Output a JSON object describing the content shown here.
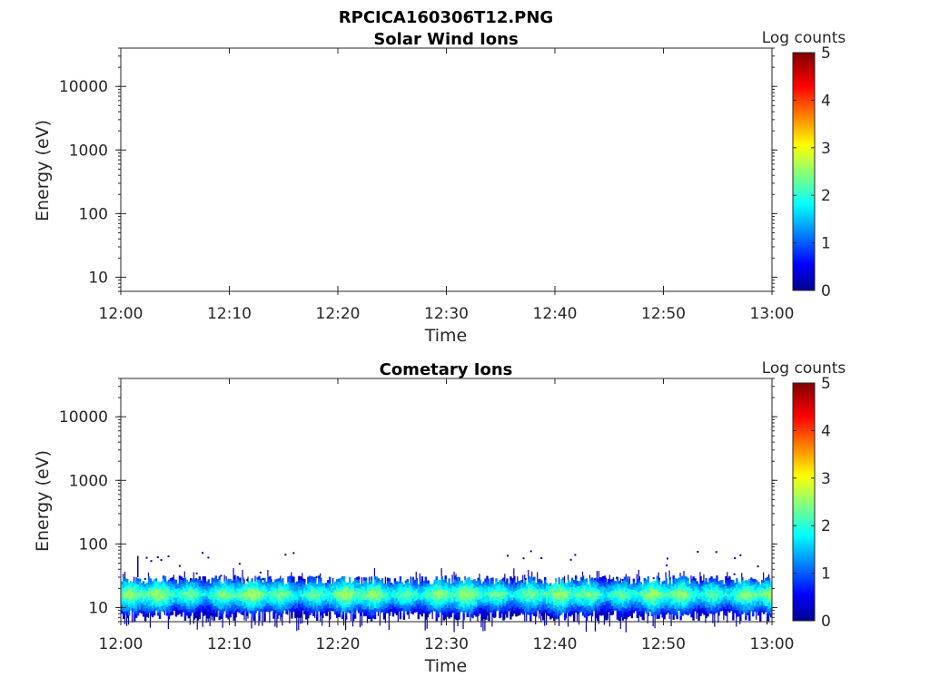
{
  "figure": {
    "title": "RPCICA160306T12.PNG"
  },
  "colorbar": {
    "label": "Log counts",
    "ticks": [
      "0",
      "1",
      "2",
      "3",
      "4",
      "5"
    ],
    "range": [
      0,
      5
    ],
    "colormap": "jet"
  },
  "chart_data": [
    {
      "type": "heatmap",
      "title": "Solar Wind Ions",
      "xlabel": "Time",
      "ylabel": "Energy (eV)",
      "x_ticks": [
        "12:00",
        "12:10",
        "12:20",
        "12:30",
        "12:40",
        "12:50",
        "13:00"
      ],
      "y_ticks": [
        "10",
        "100",
        "1000",
        "10000"
      ],
      "y_scale": "log",
      "xlim": [
        "12:00",
        "13:00"
      ],
      "ylim": [
        6,
        40000
      ],
      "band": null
    },
    {
      "type": "heatmap",
      "title": "Cometary Ions",
      "xlabel": "Time",
      "ylabel": "Energy (eV)",
      "x_ticks": [
        "12:00",
        "12:10",
        "12:20",
        "12:30",
        "12:40",
        "12:50",
        "13:00"
      ],
      "y_ticks": [
        "10",
        "100",
        "1000",
        "10000"
      ],
      "y_scale": "log",
      "xlim": [
        "12:00",
        "13:00"
      ],
      "ylim": [
        6,
        40000
      ],
      "band": {
        "energy_low": 8,
        "energy_high": 30,
        "energy_peak": 16,
        "peak_log_counts": 2.4,
        "sparse_dots_energy": [
          60,
          80
        ]
      }
    }
  ]
}
